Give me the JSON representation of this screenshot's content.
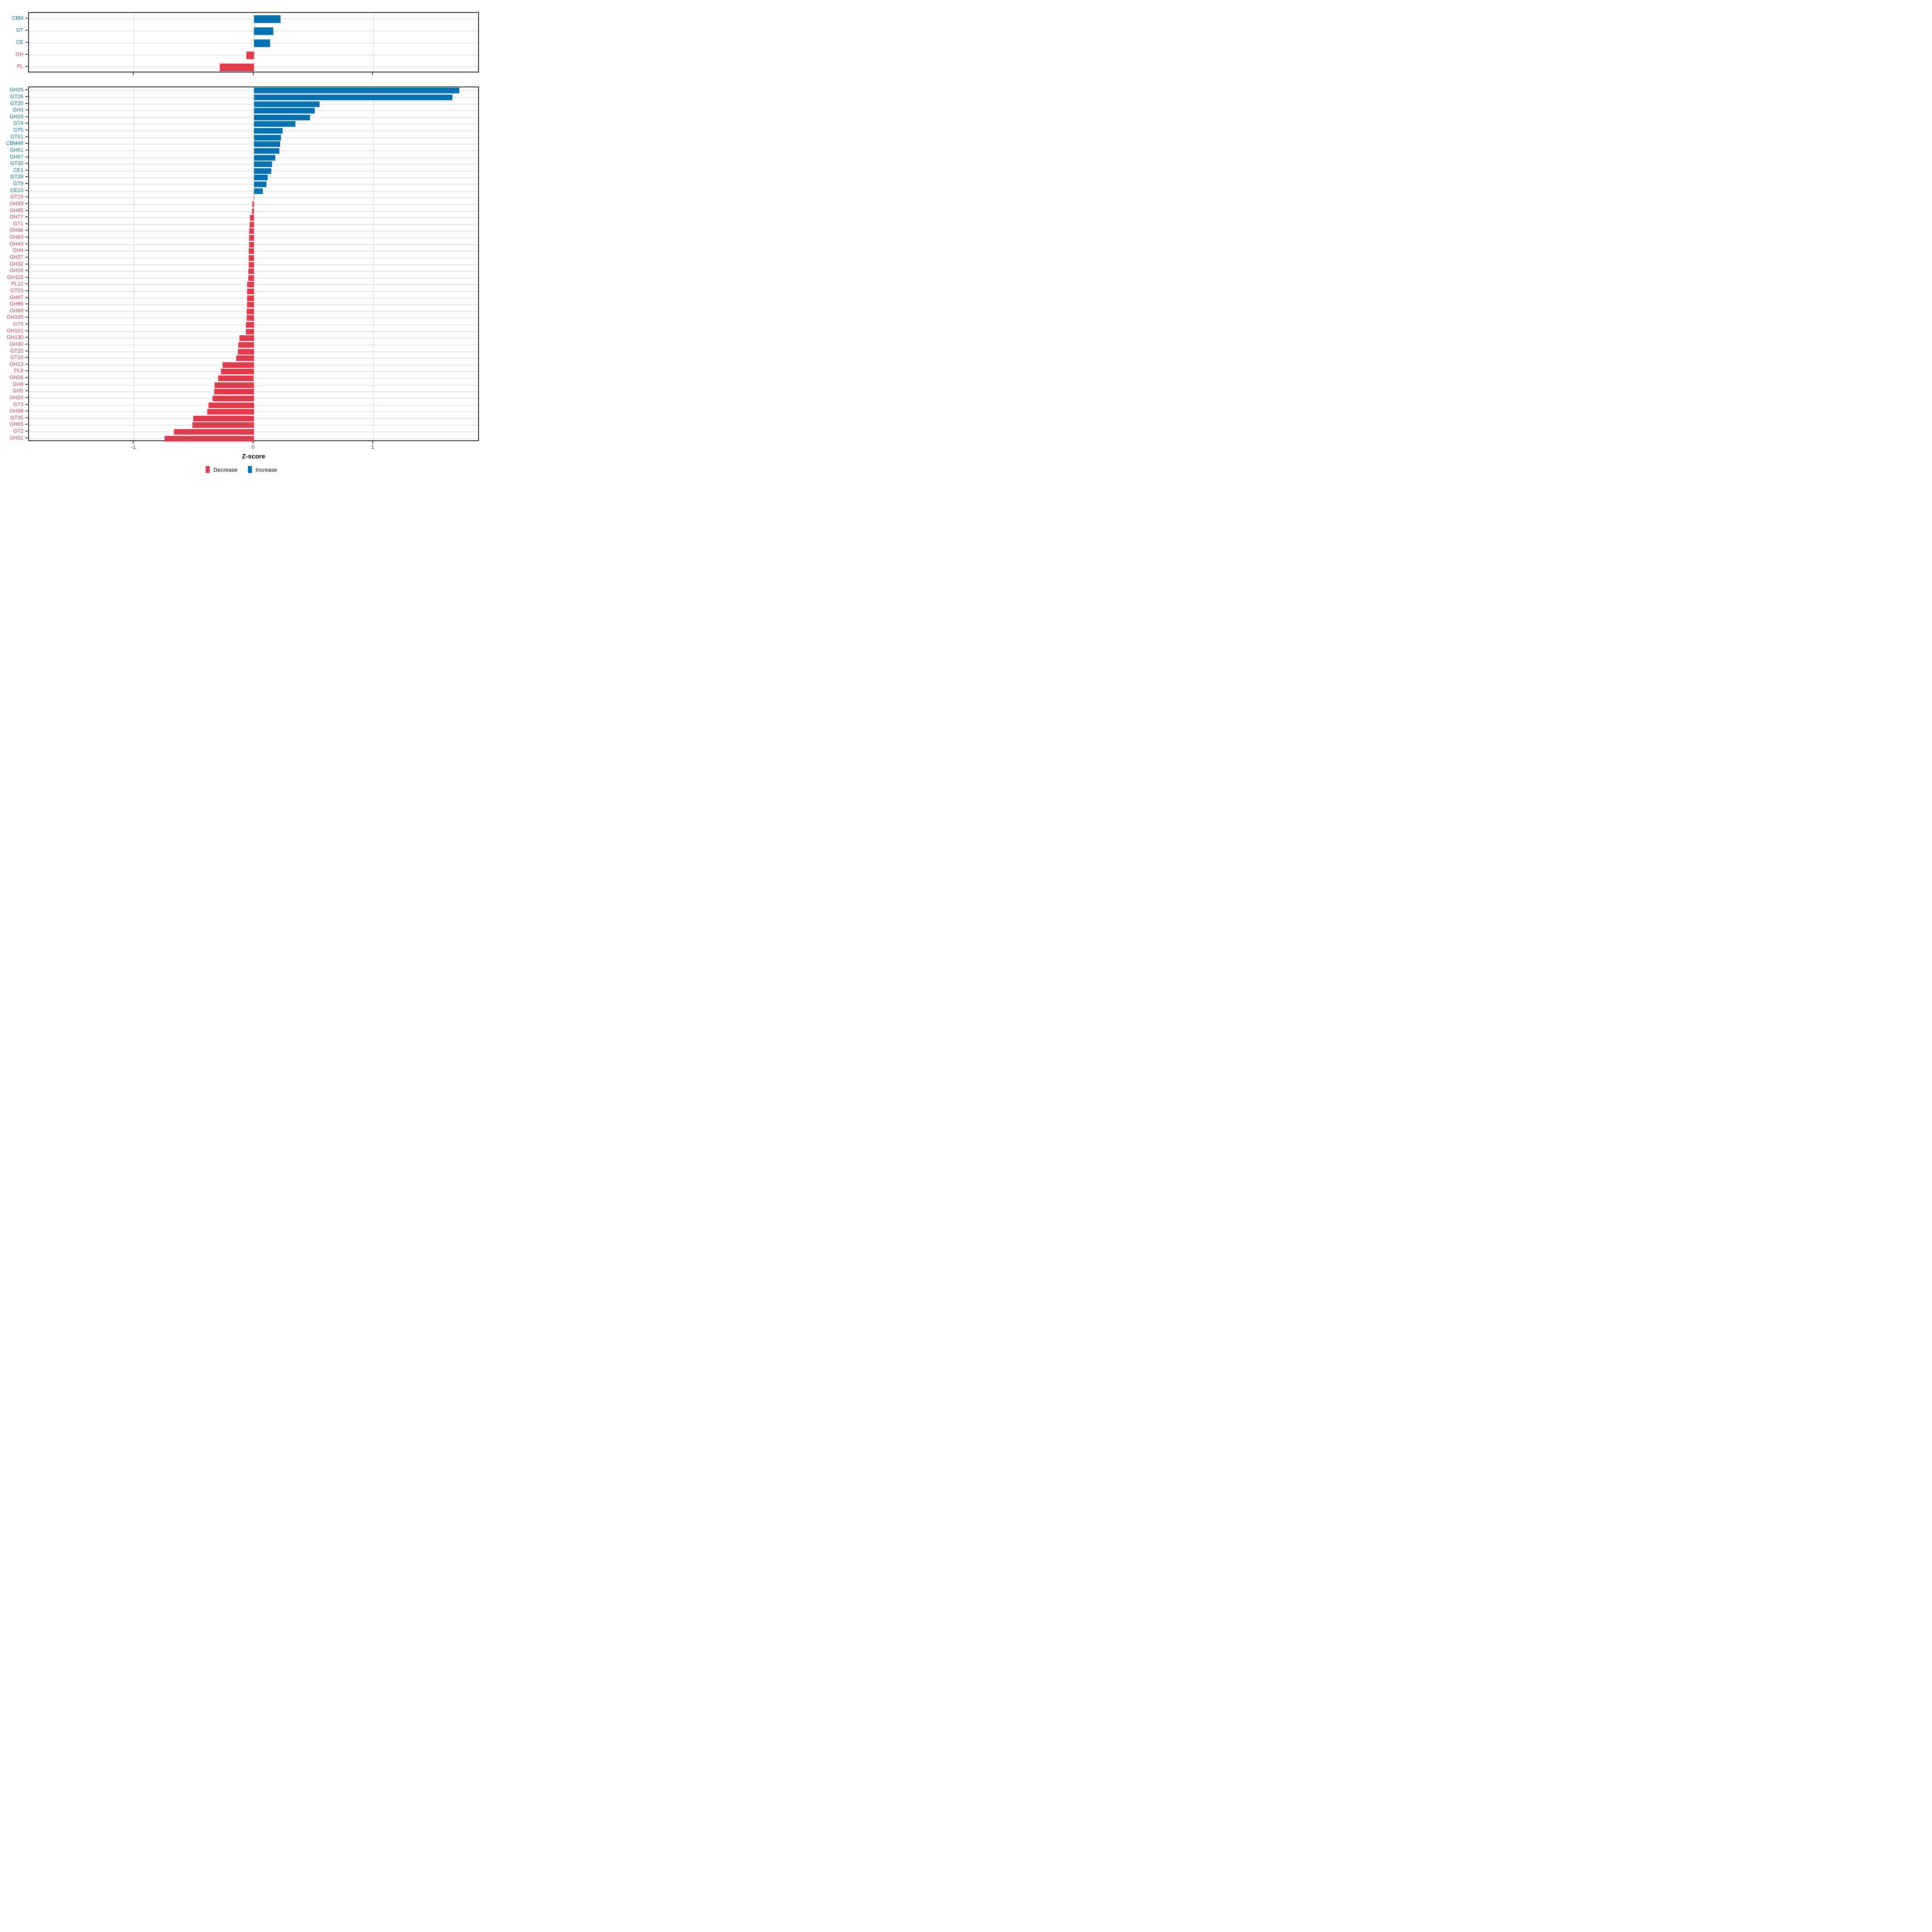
{
  "axis": {
    "xlabel": "Z-score",
    "tick_labels": [
      "-1",
      "0",
      "1"
    ],
    "tick_values": [
      -1,
      0,
      1
    ]
  },
  "legend": {
    "items": [
      {
        "label": "Decrease",
        "key": "decrease"
      },
      {
        "label": "Increase",
        "key": "increase"
      }
    ]
  },
  "colors": {
    "decrease": "#E4394A",
    "increase": "#0072B2",
    "grid": "#E2E2E2",
    "axis_text": "#404040",
    "border": "#1A1A1A"
  },
  "chart_data": [
    {
      "type": "bar",
      "orientation": "horizontal",
      "panel": "enzyme-classes",
      "xlabel": "Z-score",
      "xlim": [
        -1.88,
        1.89
      ],
      "grid": "on",
      "legend_position": "bottom",
      "categories": [
        "CBM",
        "GT",
        "CE",
        "GH",
        "PL"
      ],
      "values": [
        0.223,
        0.163,
        0.138,
        -0.062,
        -0.285
      ],
      "directions": [
        "increase",
        "increase",
        "increase",
        "decrease",
        "decrease"
      ]
    },
    {
      "type": "bar",
      "orientation": "horizontal",
      "panel": "cazyme-families",
      "xlabel": "Z-score",
      "xlim": [
        -1.88,
        1.89
      ],
      "grid": "on",
      "legend_position": "bottom",
      "categories": [
        "GH29",
        "GT26",
        "GT20",
        "GH3",
        "GH15",
        "GT4",
        "GT5",
        "GT51",
        "CBM48",
        "GH51",
        "GH57",
        "GT30",
        "CE1",
        "GT28",
        "GT9",
        "CE10",
        "GT19",
        "GH33",
        "GH95",
        "GH77",
        "GT1",
        "GH66",
        "GH63",
        "GH43",
        "GH4",
        "GH37",
        "GH32",
        "GH18",
        "GH116",
        "PL12",
        "GT23",
        "GH97",
        "GH88",
        "GH68",
        "GH105",
        "GT6",
        "GH101",
        "GH130",
        "GH30",
        "GT25",
        "GT10",
        "GH13",
        "PL8",
        "GH26",
        "GH9",
        "GH5",
        "GH20",
        "GT3",
        "GH38",
        "GT35",
        "GH65",
        "GT2",
        "GH31"
      ],
      "values": [
        1.72,
        1.66,
        0.55,
        0.51,
        0.47,
        0.35,
        0.24,
        0.227,
        0.222,
        0.214,
        0.181,
        0.152,
        0.148,
        0.115,
        0.107,
        0.075,
        -0.003,
        -0.011,
        -0.015,
        -0.033,
        -0.037,
        -0.038,
        -0.039,
        -0.04,
        -0.041,
        -0.042,
        -0.043,
        -0.044,
        -0.045,
        -0.054,
        -0.055,
        -0.056,
        -0.057,
        -0.058,
        -0.06,
        -0.066,
        -0.067,
        -0.12,
        -0.128,
        -0.132,
        -0.145,
        -0.262,
        -0.275,
        -0.298,
        -0.328,
        -0.332,
        -0.345,
        -0.378,
        -0.388,
        -0.505,
        -0.512,
        -0.668,
        -0.745
      ],
      "directions": [
        "increase",
        "increase",
        "increase",
        "increase",
        "increase",
        "increase",
        "increase",
        "increase",
        "increase",
        "increase",
        "increase",
        "increase",
        "increase",
        "increase",
        "increase",
        "increase",
        "decrease",
        "decrease",
        "decrease",
        "decrease",
        "decrease",
        "decrease",
        "decrease",
        "decrease",
        "decrease",
        "decrease",
        "decrease",
        "decrease",
        "decrease",
        "decrease",
        "decrease",
        "decrease",
        "decrease",
        "decrease",
        "decrease",
        "decrease",
        "decrease",
        "decrease",
        "decrease",
        "decrease",
        "decrease",
        "decrease",
        "decrease",
        "decrease",
        "decrease",
        "decrease",
        "decrease",
        "decrease",
        "decrease",
        "decrease",
        "decrease",
        "decrease",
        "decrease"
      ]
    }
  ]
}
